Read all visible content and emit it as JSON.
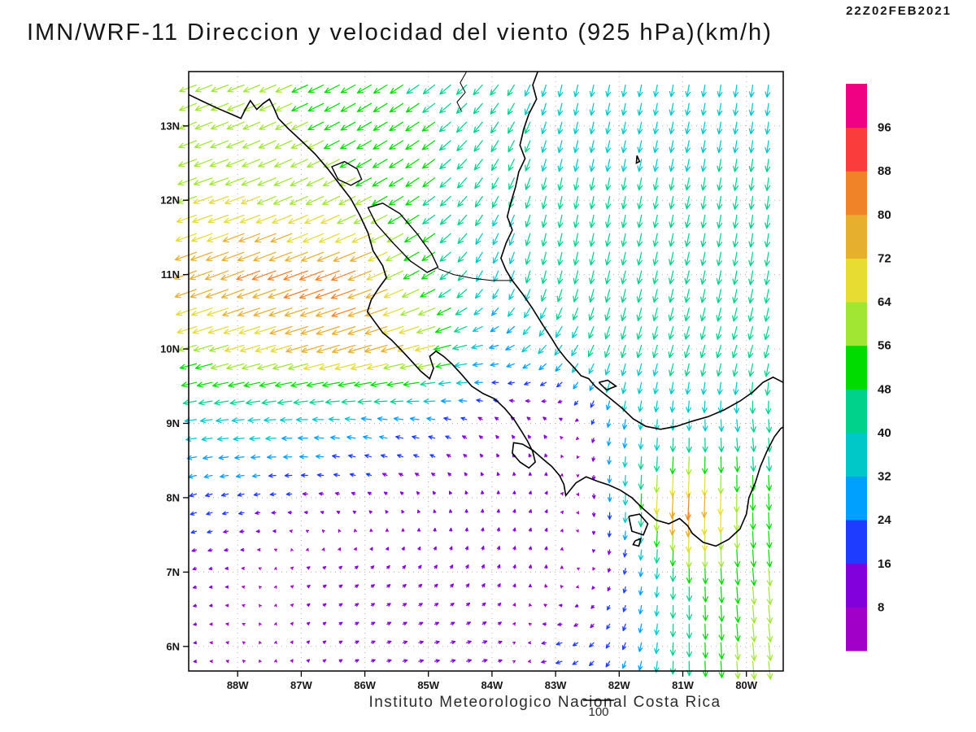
{
  "header": {
    "title": "IMN/WRF-11 Direccion y velocidad del viento (925 hPa)(km/h)",
    "timestamp": "22Z02FEB2021"
  },
  "footer": {
    "credit": "Instituto Meteorologico Nacional Costa Rica",
    "ref_label": "100"
  },
  "chart_data": {
    "type": "vector_field",
    "title": "IMN/WRF-11 Direccion y velocidad del viento (925 hPa)(km/h)",
    "timestamp": "22Z02FEB2021",
    "variable": "wind direction and speed",
    "level": "925 hPa",
    "units": "km/h",
    "ref_speed": 100,
    "x_ticks": [
      [
        -88,
        "88W"
      ],
      [
        -87,
        "87W"
      ],
      [
        -86,
        "86W"
      ],
      [
        -85,
        "85W"
      ],
      [
        -84,
        "84W"
      ],
      [
        -83,
        "83W"
      ],
      [
        -82,
        "82W"
      ],
      [
        -81,
        "81W"
      ],
      [
        -80,
        "80W"
      ]
    ],
    "y_ticks": [
      [
        13,
        "13N"
      ],
      [
        12,
        "12N"
      ],
      [
        11,
        "11N"
      ],
      [
        10,
        "10N"
      ],
      [
        9,
        "9N"
      ],
      [
        8,
        "8N"
      ],
      [
        7,
        "7N"
      ],
      [
        6,
        "6N"
      ]
    ],
    "lon_range": [
      -88.77,
      -79.42
    ],
    "lat_range": [
      5.67,
      13.73
    ],
    "grid_on": true,
    "style": {
      "grid_color": "#b3a794",
      "coast_color": "#000000",
      "text_color": "#161616"
    },
    "colorbar": {
      "levels": [
        8,
        16,
        24,
        32,
        40,
        48,
        56,
        64,
        72,
        80,
        88,
        96
      ],
      "colors": [
        "#A000C8",
        "#8200DC",
        "#1E3CFF",
        "#00A0FF",
        "#00C8C8",
        "#00D28C",
        "#00DC00",
        "#A0E632",
        "#E6DC32",
        "#E6AF2D",
        "#F08228",
        "#FA3C3C",
        "#F00082"
      ]
    },
    "grid": {
      "lons": [
        -89,
        -88,
        -87,
        -86,
        -85,
        -84,
        -83,
        -82,
        -81,
        -80,
        -79
      ],
      "lats": [
        6,
        7,
        8,
        9,
        10,
        11,
        12,
        13,
        14
      ],
      "u": [
        [
          -10,
          -5,
          5,
          12,
          15,
          15,
          -20,
          -10,
          0,
          5,
          8
        ],
        [
          -12,
          -8,
          8,
          10,
          8,
          5,
          0,
          -5,
          0,
          5,
          5
        ],
        [
          -22,
          -20,
          -15,
          -10,
          -5,
          0,
          5,
          0,
          -5,
          0,
          5
        ],
        [
          -35,
          -38,
          -35,
          -30,
          -25,
          -10,
          -8,
          -5,
          0,
          5,
          0
        ],
        [
          -55,
          -60,
          -68,
          -75,
          -68,
          -30,
          -25,
          -12,
          -12,
          -12,
          -10
        ],
        [
          -70,
          -75,
          -78,
          -78,
          -45,
          -15,
          -10,
          -10,
          -10,
          -8,
          -8
        ],
        [
          -60,
          -62,
          -58,
          -52,
          -40,
          -20,
          -8,
          -8,
          -8,
          -6,
          -5
        ],
        [
          -55,
          -55,
          -52,
          -45,
          -42,
          -25,
          -10,
          -8,
          -8,
          -6,
          -5
        ],
        [
          -55,
          -52,
          -50,
          -45,
          -35,
          -30,
          -8,
          -8,
          -6,
          -5,
          -5
        ]
      ],
      "v": [
        [
          -3,
          3,
          6,
          5,
          3,
          5,
          -5,
          -20,
          -45,
          -58,
          -58
        ],
        [
          -5,
          0,
          5,
          8,
          10,
          12,
          10,
          -15,
          -45,
          -55,
          -60
        ],
        [
          -8,
          -5,
          0,
          5,
          8,
          10,
          8,
          -30,
          -90,
          -55,
          -50
        ],
        [
          -5,
          -3,
          0,
          5,
          5,
          8,
          10,
          -30,
          -35,
          -40,
          -45
        ],
        [
          -15,
          -18,
          -20,
          -22,
          -18,
          -5,
          -30,
          -40,
          -40,
          -40,
          -42
        ],
        [
          -25,
          -28,
          -28,
          -30,
          -25,
          -35,
          -42,
          -42,
          -42,
          -45,
          -45
        ],
        [
          -20,
          -22,
          -25,
          -26,
          -28,
          -35,
          -40,
          -40,
          -40,
          -42,
          -42
        ],
        [
          -22,
          -22,
          -24,
          -26,
          -28,
          -35,
          -38,
          -38,
          -38,
          -38,
          -40
        ],
        [
          -20,
          -20,
          -22,
          -25,
          -28,
          -30,
          -38,
          -38,
          -38,
          -40,
          -40
        ]
      ]
    }
  },
  "map": {
    "coastlines": [
      [
        [
          -88.77,
          13.42
        ],
        [
          -88.55,
          13.33
        ],
        [
          -88.3,
          13.23
        ],
        [
          -88.08,
          13.15
        ],
        [
          -87.95,
          13.1
        ],
        [
          -87.88,
          13.22
        ],
        [
          -87.8,
          13.34
        ],
        [
          -87.7,
          13.22
        ],
        [
          -87.6,
          13.3
        ],
        [
          -87.5,
          13.36
        ],
        [
          -87.43,
          13.24
        ],
        [
          -87.36,
          13.1
        ],
        [
          -87.2,
          12.96
        ],
        [
          -87.0,
          12.8
        ],
        [
          -86.78,
          12.62
        ],
        [
          -86.58,
          12.42
        ],
        [
          -86.4,
          12.22
        ],
        [
          -86.22,
          12.02
        ],
        [
          -86.08,
          11.8
        ],
        [
          -85.95,
          11.56
        ],
        [
          -85.87,
          11.32
        ],
        [
          -85.72,
          11.12
        ],
        [
          -85.66,
          10.96
        ],
        [
          -85.78,
          10.82
        ],
        [
          -85.9,
          10.66
        ],
        [
          -85.96,
          10.5
        ],
        [
          -85.84,
          10.36
        ],
        [
          -85.72,
          10.22
        ],
        [
          -85.58,
          10.12
        ],
        [
          -85.42,
          9.98
        ],
        [
          -85.28,
          9.85
        ],
        [
          -85.12,
          9.7
        ],
        [
          -84.98,
          9.6
        ],
        [
          -84.92,
          9.74
        ],
        [
          -84.98,
          9.9
        ],
        [
          -84.88,
          9.97
        ],
        [
          -84.76,
          9.9
        ],
        [
          -84.63,
          9.8
        ],
        [
          -84.48,
          9.66
        ],
        [
          -84.32,
          9.5
        ],
        [
          -84.14,
          9.4
        ],
        [
          -83.96,
          9.33
        ],
        [
          -83.8,
          9.2
        ],
        [
          -83.66,
          9.06
        ],
        [
          -83.54,
          8.9
        ],
        [
          -83.44,
          8.76
        ],
        [
          -83.36,
          8.62
        ],
        [
          -83.32,
          8.48
        ],
        [
          -83.42,
          8.4
        ],
        [
          -83.56,
          8.48
        ],
        [
          -83.68,
          8.6
        ],
        [
          -83.66,
          8.74
        ],
        [
          -83.52,
          8.72
        ],
        [
          -83.36,
          8.64
        ],
        [
          -83.2,
          8.52
        ],
        [
          -83.06,
          8.42
        ],
        [
          -82.94,
          8.3
        ],
        [
          -82.87,
          8.18
        ],
        [
          -82.84,
          8.03
        ],
        [
          -82.68,
          8.2
        ],
        [
          -82.52,
          8.28
        ],
        [
          -82.34,
          8.22
        ],
        [
          -82.16,
          8.17
        ],
        [
          -81.98,
          8.1
        ],
        [
          -81.8,
          8.0
        ],
        [
          -81.62,
          7.85
        ],
        [
          -81.42,
          7.7
        ],
        [
          -81.22,
          7.65
        ],
        [
          -81.05,
          7.72
        ],
        [
          -80.92,
          7.62
        ],
        [
          -80.85,
          7.52
        ],
        [
          -80.68,
          7.4
        ],
        [
          -80.48,
          7.35
        ],
        [
          -80.28,
          7.44
        ],
        [
          -80.1,
          7.58
        ],
        [
          -80.0,
          7.78
        ],
        [
          -79.96,
          8.0
        ],
        [
          -79.86,
          8.2
        ],
        [
          -79.78,
          8.42
        ],
        [
          -79.68,
          8.62
        ],
        [
          -79.56,
          8.82
        ],
        [
          -79.46,
          8.93
        ],
        [
          -79.42,
          8.95
        ]
      ],
      [
        [
          -83.28,
          13.73
        ],
        [
          -83.36,
          13.55
        ],
        [
          -83.3,
          13.36
        ],
        [
          -83.42,
          13.16
        ],
        [
          -83.5,
          12.96
        ],
        [
          -83.56,
          12.74
        ],
        [
          -83.48,
          12.56
        ],
        [
          -83.58,
          12.38
        ],
        [
          -83.63,
          12.18
        ],
        [
          -83.7,
          11.98
        ],
        [
          -83.76,
          11.78
        ],
        [
          -83.68,
          11.6
        ],
        [
          -83.78,
          11.42
        ],
        [
          -83.86,
          11.22
        ],
        [
          -83.78,
          11.06
        ],
        [
          -83.68,
          10.92
        ],
        [
          -83.52,
          10.74
        ],
        [
          -83.36,
          10.54
        ],
        [
          -83.2,
          10.32
        ],
        [
          -83.06,
          10.14
        ],
        [
          -82.96,
          10.0
        ],
        [
          -82.83,
          9.86
        ],
        [
          -82.7,
          9.74
        ],
        [
          -82.6,
          9.64
        ],
        [
          -82.48,
          9.6
        ],
        [
          -82.38,
          9.5
        ],
        [
          -82.28,
          9.43
        ],
        [
          -82.12,
          9.32
        ],
        [
          -81.95,
          9.2
        ],
        [
          -81.78,
          9.06
        ],
        [
          -81.58,
          8.96
        ],
        [
          -81.35,
          8.92
        ],
        [
          -81.1,
          8.96
        ],
        [
          -80.85,
          9.03
        ],
        [
          -80.6,
          9.09
        ],
        [
          -80.35,
          9.18
        ],
        [
          -80.1,
          9.3
        ],
        [
          -79.9,
          9.42
        ],
        [
          -79.74,
          9.55
        ],
        [
          -79.58,
          9.62
        ],
        [
          -79.42,
          9.55
        ]
      ],
      [
        [
          -82.32,
          9.55
        ],
        [
          -82.18,
          9.58
        ],
        [
          -82.05,
          9.5
        ],
        [
          -82.2,
          9.45
        ],
        [
          -82.32,
          9.55
        ]
      ],
      [
        [
          -81.85,
          7.75
        ],
        [
          -81.68,
          7.78
        ],
        [
          -81.55,
          7.65
        ],
        [
          -81.62,
          7.5
        ],
        [
          -81.8,
          7.55
        ],
        [
          -81.85,
          7.75
        ]
      ],
      [
        [
          -81.75,
          7.42
        ],
        [
          -81.66,
          7.45
        ],
        [
          -81.69,
          7.35
        ],
        [
          -81.78,
          7.37
        ],
        [
          -81.75,
          7.42
        ]
      ],
      [
        [
          -81.72,
          12.6
        ],
        [
          -81.68,
          12.52
        ],
        [
          -81.73,
          12.5
        ],
        [
          -81.72,
          12.6
        ]
      ]
    ],
    "lakes": [
      [
        [
          -85.95,
          11.9
        ],
        [
          -85.72,
          11.96
        ],
        [
          -85.45,
          11.82
        ],
        [
          -85.18,
          11.55
        ],
        [
          -84.95,
          11.28
        ],
        [
          -84.85,
          11.1
        ],
        [
          -85.02,
          11.03
        ],
        [
          -85.28,
          11.18
        ],
        [
          -85.55,
          11.42
        ],
        [
          -85.82,
          11.68
        ],
        [
          -85.95,
          11.9
        ]
      ],
      [
        [
          -86.52,
          12.45
        ],
        [
          -86.32,
          12.52
        ],
        [
          -86.12,
          12.42
        ],
        [
          -86.05,
          12.28
        ],
        [
          -86.22,
          12.2
        ],
        [
          -86.42,
          12.28
        ],
        [
          -86.52,
          12.45
        ]
      ]
    ],
    "borders": [
      [
        [
          -84.4,
          13.73
        ],
        [
          -84.5,
          13.58
        ],
        [
          -84.42,
          13.45
        ],
        [
          -84.55,
          13.32
        ],
        [
          -84.48,
          13.2
        ]
      ],
      [
        [
          -84.85,
          11.08
        ],
        [
          -84.6,
          11.0
        ],
        [
          -84.3,
          10.95
        ],
        [
          -84.0,
          10.92
        ],
        [
          -83.68,
          10.92
        ]
      ]
    ]
  }
}
